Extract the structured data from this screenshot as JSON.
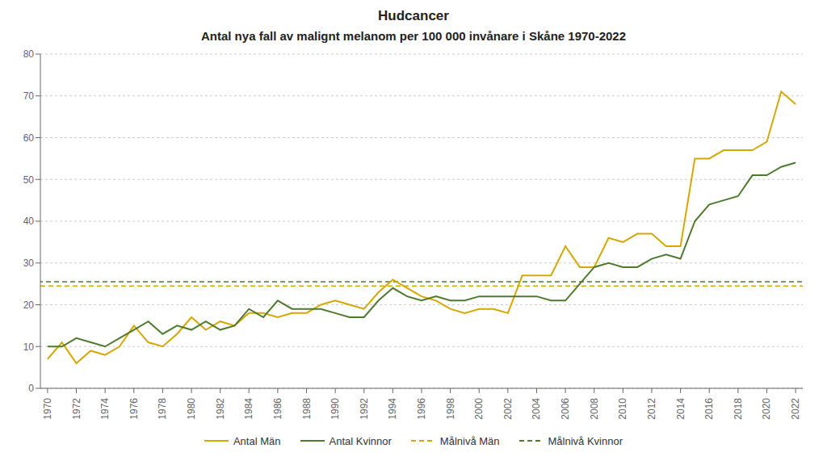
{
  "chart_data": {
    "type": "line",
    "title": "Hudcancer",
    "subtitle": "Antal nya fall av malignt melanom per 100 000 invånare i Skåne 1970-2022",
    "x": [
      1970,
      1971,
      1972,
      1973,
      1974,
      1975,
      1976,
      1977,
      1978,
      1979,
      1980,
      1981,
      1982,
      1983,
      1984,
      1985,
      1986,
      1987,
      1988,
      1989,
      1990,
      1991,
      1992,
      1993,
      1994,
      1995,
      1996,
      1997,
      1998,
      1999,
      2000,
      2001,
      2002,
      2003,
      2004,
      2005,
      2006,
      2007,
      2008,
      2009,
      2010,
      2011,
      2012,
      2013,
      2014,
      2015,
      2016,
      2017,
      2018,
      2019,
      2020,
      2021,
      2022
    ],
    "series": [
      {
        "name": "Antal Män",
        "type": "line",
        "color": "#D4A800",
        "line_style": "solid",
        "values": [
          7,
          11,
          6,
          9,
          8,
          10,
          15,
          11,
          10,
          13,
          17,
          14,
          16,
          15,
          18,
          18,
          17,
          18,
          18,
          20,
          21,
          20,
          19,
          23,
          26,
          24,
          22,
          21,
          19,
          18,
          19,
          19,
          18,
          27,
          27,
          27,
          34,
          29,
          29,
          36,
          35,
          37,
          37,
          34,
          34,
          55,
          55,
          57,
          57,
          57,
          59,
          71,
          68
        ]
      },
      {
        "name": "Antal Kvinnor",
        "type": "line",
        "color": "#4E7A2E",
        "line_style": "solid",
        "values": [
          10,
          10,
          12,
          11,
          10,
          12,
          14,
          16,
          13,
          15,
          14,
          16,
          14,
          15,
          19,
          17,
          21,
          19,
          19,
          19,
          18,
          17,
          17,
          21,
          24,
          22,
          21,
          22,
          21,
          21,
          22,
          22,
          22,
          22,
          22,
          21,
          21,
          25,
          29,
          30,
          29,
          29,
          31,
          32,
          31,
          40,
          44,
          45,
          46,
          51,
          51,
          53,
          54
        ]
      },
      {
        "name": "Målnivå Män",
        "type": "hline",
        "color": "#D4A800",
        "line_style": "dashed",
        "y": 24.5
      },
      {
        "name": "Målnivå Kvinnor",
        "type": "hline",
        "color": "#4E7A2E",
        "line_style": "dashed",
        "y": 25.5
      }
    ],
    "xlim": [
      1969.5,
      2022.5
    ],
    "xticks": [
      1970,
      1972,
      1974,
      1976,
      1978,
      1980,
      1982,
      1984,
      1986,
      1988,
      1990,
      1992,
      1994,
      1996,
      1998,
      2000,
      2002,
      2004,
      2006,
      2008,
      2010,
      2012,
      2014,
      2016,
      2018,
      2020,
      2022
    ],
    "ylim": [
      0,
      80
    ],
    "yticks": [
      0,
      10,
      20,
      30,
      40,
      50,
      60,
      70,
      80
    ],
    "grid": "y",
    "legend": "bottom"
  }
}
